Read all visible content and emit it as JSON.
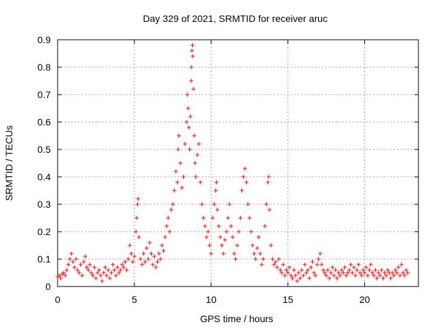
{
  "chart_data": {
    "type": "scatter",
    "title": "Day 329 of 2021, SRMTID for receiver aruc",
    "xlabel": "GPS time / hours",
    "ylabel": "SRMTID / TECUs",
    "xlim": [
      0,
      23.5
    ],
    "ylim": [
      0,
      0.9
    ],
    "xticks": [
      0,
      5,
      10,
      15,
      20
    ],
    "yticks": [
      0,
      0.1,
      0.2,
      0.3,
      0.4,
      0.5,
      0.6,
      0.7,
      0.8,
      0.9
    ],
    "xtick_labels": [
      "0",
      "5",
      "10",
      "15",
      "20"
    ],
    "ytick_labels": [
      "0",
      "0.1",
      "0.2",
      "0.3",
      "0.4",
      "0.5",
      "0.6",
      "0.7",
      "0.8",
      "0.9"
    ],
    "grid": true,
    "marker": "+",
    "color": "#ff0000",
    "series": [
      {
        "name": "SRMTID",
        "points": [
          [
            0.0,
            0.035
          ],
          [
            0.1,
            0.04
          ],
          [
            0.2,
            0.03
          ],
          [
            0.3,
            0.045
          ],
          [
            0.4,
            0.05
          ],
          [
            0.5,
            0.04
          ],
          [
            0.6,
            0.06
          ],
          [
            0.7,
            0.08
          ],
          [
            0.8,
            0.1
          ],
          [
            0.9,
            0.12
          ],
          [
            1.0,
            0.09
          ],
          [
            1.1,
            0.07
          ],
          [
            1.2,
            0.1
          ],
          [
            1.3,
            0.06
          ],
          [
            1.4,
            0.05
          ],
          [
            1.5,
            0.08
          ],
          [
            1.6,
            0.04
          ],
          [
            1.7,
            0.09
          ],
          [
            1.8,
            0.11
          ],
          [
            1.9,
            0.07
          ],
          [
            2.0,
            0.06
          ],
          [
            2.1,
            0.08
          ],
          [
            2.2,
            0.05
          ],
          [
            2.3,
            0.04
          ],
          [
            2.4,
            0.07
          ],
          [
            2.5,
            0.03
          ],
          [
            2.6,
            0.05
          ],
          [
            2.7,
            0.06
          ],
          [
            2.8,
            0.04
          ],
          [
            2.9,
            0.02
          ],
          [
            3.0,
            0.05
          ],
          [
            3.1,
            0.07
          ],
          [
            3.2,
            0.04
          ],
          [
            3.3,
            0.06
          ],
          [
            3.4,
            0.03
          ],
          [
            3.5,
            0.05
          ],
          [
            3.6,
            0.08
          ],
          [
            3.7,
            0.06
          ],
          [
            3.8,
            0.04
          ],
          [
            3.9,
            0.07
          ],
          [
            4.0,
            0.05
          ],
          [
            4.1,
            0.06
          ],
          [
            4.2,
            0.08
          ],
          [
            4.3,
            0.07
          ],
          [
            4.4,
            0.09
          ],
          [
            4.5,
            0.06
          ],
          [
            4.6,
            0.1
          ],
          [
            4.7,
            0.15
          ],
          [
            4.8,
            0.12
          ],
          [
            4.9,
            0.09
          ],
          [
            5.0,
            0.11
          ],
          [
            5.1,
            0.2
          ],
          [
            5.15,
            0.25
          ],
          [
            5.2,
            0.3
          ],
          [
            5.25,
            0.32
          ],
          [
            5.3,
            0.18
          ],
          [
            5.4,
            0.1
          ],
          [
            5.5,
            0.08
          ],
          [
            5.6,
            0.12
          ],
          [
            5.7,
            0.09
          ],
          [
            5.8,
            0.14
          ],
          [
            5.9,
            0.1
          ],
          [
            6.0,
            0.16
          ],
          [
            6.1,
            0.12
          ],
          [
            6.2,
            0.08
          ],
          [
            6.3,
            0.11
          ],
          [
            6.4,
            0.07
          ],
          [
            6.5,
            0.09
          ],
          [
            6.6,
            0.12
          ],
          [
            6.7,
            0.1
          ],
          [
            6.8,
            0.15
          ],
          [
            6.9,
            0.13
          ],
          [
            7.0,
            0.18
          ],
          [
            7.1,
            0.22
          ],
          [
            7.2,
            0.25
          ],
          [
            7.3,
            0.2
          ],
          [
            7.4,
            0.28
          ],
          [
            7.5,
            0.3
          ],
          [
            7.6,
            0.35
          ],
          [
            7.7,
            0.42
          ],
          [
            7.8,
            0.38
          ],
          [
            7.85,
            0.5
          ],
          [
            7.9,
            0.55
          ],
          [
            8.0,
            0.45
          ],
          [
            8.1,
            0.36
          ],
          [
            8.2,
            0.4
          ],
          [
            8.3,
            0.52
          ],
          [
            8.4,
            0.6
          ],
          [
            8.45,
            0.7
          ],
          [
            8.5,
            0.65
          ],
          [
            8.55,
            0.58
          ],
          [
            8.6,
            0.5
          ],
          [
            8.65,
            0.62
          ],
          [
            8.7,
            0.75
          ],
          [
            8.72,
            0.8
          ],
          [
            8.75,
            0.86
          ],
          [
            8.78,
            0.88
          ],
          [
            8.8,
            0.84
          ],
          [
            8.85,
            0.72
          ],
          [
            8.9,
            0.55
          ],
          [
            8.95,
            0.45
          ],
          [
            9.0,
            0.4
          ],
          [
            9.1,
            0.48
          ],
          [
            9.2,
            0.52
          ],
          [
            9.3,
            0.38
          ],
          [
            9.4,
            0.3
          ],
          [
            9.5,
            0.25
          ],
          [
            9.6,
            0.22
          ],
          [
            9.7,
            0.18
          ],
          [
            9.8,
            0.2
          ],
          [
            9.9,
            0.15
          ],
          [
            10.0,
            0.12
          ],
          [
            10.1,
            0.25
          ],
          [
            10.2,
            0.3
          ],
          [
            10.3,
            0.35
          ],
          [
            10.35,
            0.38
          ],
          [
            10.4,
            0.28
          ],
          [
            10.5,
            0.22
          ],
          [
            10.6,
            0.18
          ],
          [
            10.7,
            0.15
          ],
          [
            10.8,
            0.12
          ],
          [
            10.9,
            0.17
          ],
          [
            11.0,
            0.2
          ],
          [
            11.1,
            0.25
          ],
          [
            11.2,
            0.3
          ],
          [
            11.3,
            0.22
          ],
          [
            11.4,
            0.18
          ],
          [
            11.5,
            0.12
          ],
          [
            11.6,
            0.1
          ],
          [
            11.7,
            0.15
          ],
          [
            11.8,
            0.2
          ],
          [
            11.9,
            0.25
          ],
          [
            12.0,
            0.35
          ],
          [
            12.1,
            0.4
          ],
          [
            12.2,
            0.43
          ],
          [
            12.3,
            0.38
          ],
          [
            12.4,
            0.3
          ],
          [
            12.5,
            0.25
          ],
          [
            12.6,
            0.2
          ],
          [
            12.7,
            0.15
          ],
          [
            12.8,
            0.12
          ],
          [
            12.9,
            0.1
          ],
          [
            13.0,
            0.14
          ],
          [
            13.1,
            0.18
          ],
          [
            13.2,
            0.12
          ],
          [
            13.3,
            0.08
          ],
          [
            13.4,
            0.1
          ],
          [
            13.5,
            0.22
          ],
          [
            13.6,
            0.3
          ],
          [
            13.7,
            0.38
          ],
          [
            13.75,
            0.4
          ],
          [
            13.8,
            0.28
          ],
          [
            13.9,
            0.15
          ],
          [
            14.0,
            0.1
          ],
          [
            14.1,
            0.08
          ],
          [
            14.2,
            0.09
          ],
          [
            14.3,
            0.07
          ],
          [
            14.4,
            0.1
          ],
          [
            14.5,
            0.06
          ],
          [
            14.6,
            0.05
          ],
          [
            14.7,
            0.08
          ],
          [
            14.8,
            0.04
          ],
          [
            14.9,
            0.06
          ],
          [
            15.0,
            0.05
          ],
          [
            15.1,
            0.07
          ],
          [
            15.2,
            0.04
          ],
          [
            15.3,
            0.03
          ],
          [
            15.4,
            0.06
          ],
          [
            15.5,
            0.04
          ],
          [
            15.6,
            0.02
          ],
          [
            15.7,
            0.05
          ],
          [
            15.8,
            0.03
          ],
          [
            15.9,
            0.06
          ],
          [
            16.0,
            0.04
          ],
          [
            16.1,
            0.08
          ],
          [
            16.2,
            0.05
          ],
          [
            16.3,
            0.06
          ],
          [
            16.4,
            0.03
          ],
          [
            16.5,
            0.07
          ],
          [
            16.6,
            0.09
          ],
          [
            16.7,
            0.05
          ],
          [
            16.8,
            0.04
          ],
          [
            16.9,
            0.08
          ],
          [
            17.0,
            0.1
          ],
          [
            17.1,
            0.12
          ],
          [
            17.2,
            0.08
          ],
          [
            17.3,
            0.06
          ],
          [
            17.4,
            0.05
          ],
          [
            17.5,
            0.04
          ],
          [
            17.6,
            0.06
          ],
          [
            17.7,
            0.03
          ],
          [
            17.8,
            0.05
          ],
          [
            17.9,
            0.07
          ],
          [
            18.0,
            0.04
          ],
          [
            18.1,
            0.06
          ],
          [
            18.2,
            0.03
          ],
          [
            18.3,
            0.05
          ],
          [
            18.4,
            0.04
          ],
          [
            18.5,
            0.06
          ],
          [
            18.6,
            0.05
          ],
          [
            18.7,
            0.07
          ],
          [
            18.8,
            0.04
          ],
          [
            18.9,
            0.05
          ],
          [
            19.0,
            0.06
          ],
          [
            19.1,
            0.08
          ],
          [
            19.2,
            0.05
          ],
          [
            19.3,
            0.07
          ],
          [
            19.4,
            0.04
          ],
          [
            19.5,
            0.06
          ],
          [
            19.6,
            0.08
          ],
          [
            19.7,
            0.05
          ],
          [
            19.8,
            0.04
          ],
          [
            19.9,
            0.06
          ],
          [
            20.0,
            0.05
          ],
          [
            20.1,
            0.07
          ],
          [
            20.2,
            0.04
          ],
          [
            20.3,
            0.06
          ],
          [
            20.4,
            0.08
          ],
          [
            20.5,
            0.05
          ],
          [
            20.6,
            0.04
          ],
          [
            20.7,
            0.06
          ],
          [
            20.8,
            0.03
          ],
          [
            20.9,
            0.05
          ],
          [
            21.0,
            0.04
          ],
          [
            21.1,
            0.06
          ],
          [
            21.2,
            0.03
          ],
          [
            21.3,
            0.05
          ],
          [
            21.4,
            0.04
          ],
          [
            21.5,
            0.06
          ],
          [
            21.6,
            0.05
          ],
          [
            21.7,
            0.03
          ],
          [
            21.8,
            0.05
          ],
          [
            21.9,
            0.04
          ],
          [
            22.0,
            0.06
          ],
          [
            22.1,
            0.05
          ],
          [
            22.2,
            0.07
          ],
          [
            22.3,
            0.04
          ],
          [
            22.4,
            0.08
          ],
          [
            22.5,
            0.05
          ],
          [
            22.6,
            0.04
          ],
          [
            22.7,
            0.06
          ],
          [
            22.8,
            0.05
          ]
        ]
      }
    ]
  }
}
